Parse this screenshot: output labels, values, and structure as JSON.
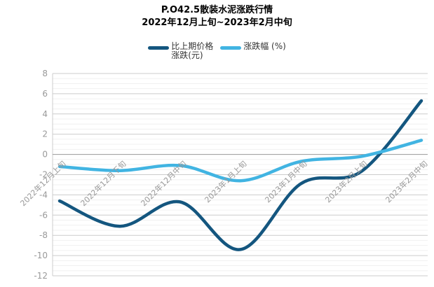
{
  "title": {
    "line1": "P.O42.5散装水泥涨跌行情",
    "line2": "2022年12月上旬~2023年2月中旬"
  },
  "legend": {
    "items": [
      {
        "label": "比上期价格涨跌(元)",
        "color": "#14567f"
      },
      {
        "label": "涨跌幅 (%)",
        "color": "#41b4e2"
      }
    ]
  },
  "chart_data": {
    "type": "line",
    "title": "P.O42.5散装水泥涨跌行情 2022年12月上旬~2023年2月中旬",
    "categories": [
      "2022年12月上旬",
      "2022年12月下旬",
      "2022年12月中旬",
      "2023年1月上旬",
      "2023年1月中旬",
      "2023年2月上旬",
      "2023年2月中旬"
    ],
    "series": [
      {
        "name": "比上期价格涨跌(元)",
        "color": "#14567f",
        "values": [
          -4.6,
          -7.1,
          -4.7,
          -9.4,
          -2.9,
          -1.7,
          5.3
        ]
      },
      {
        "name": "涨跌幅 (%)",
        "color": "#41b4e2",
        "values": [
          -1.2,
          -1.6,
          -1.1,
          -2.6,
          -0.7,
          -0.2,
          1.4
        ]
      }
    ],
    "ylim": [
      -12,
      8
    ],
    "y_ticks": [
      8,
      6,
      4,
      2,
      0,
      -2,
      -4,
      -6,
      -8,
      -10,
      -12
    ],
    "minor_tick_step": 0.5,
    "grid": "on",
    "legend_position": "top",
    "colors": {
      "axis_label": "#999999",
      "zero_axis_line": "#999999",
      "major_grid": "#cccccc",
      "minor_grid": "#f0f0f0",
      "axis_line": "#cccccc",
      "title_text": "#000000",
      "legend_text": "#333333"
    }
  }
}
